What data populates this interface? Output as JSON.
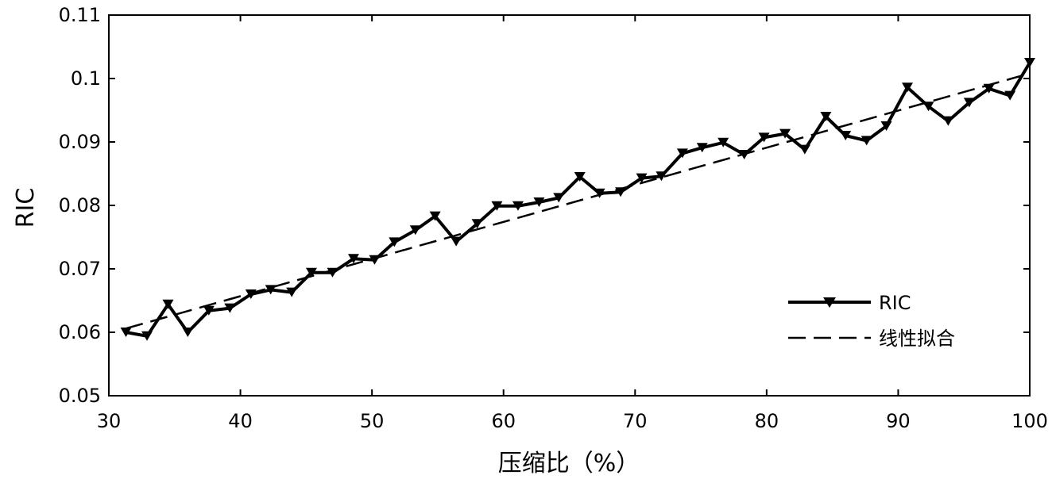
{
  "chart_data": {
    "type": "line",
    "xlabel": "压缩比（%）",
    "ylabel": "RIC",
    "xlim": [
      30,
      100
    ],
    "ylim": [
      0.05,
      0.11
    ],
    "xticks": [
      "30",
      "40",
      "50",
      "60",
      "70",
      "80",
      "90",
      "100"
    ],
    "yticks": [
      "0.05",
      "0.06",
      "0.07",
      "0.08",
      "0.09",
      "0.1",
      "0.11"
    ],
    "grid": false,
    "legend_position": "right",
    "series": [
      {
        "name": "RIC",
        "style": "solid-triangle-markers",
        "x": [
          31.3,
          32.9,
          34.5,
          36.0,
          37.6,
          39.2,
          40.8,
          42.3,
          43.9,
          45.4,
          47.0,
          48.6,
          50.2,
          51.7,
          53.3,
          54.8,
          56.4,
          58.0,
          59.5,
          61.1,
          62.7,
          64.2,
          65.8,
          67.3,
          68.9,
          70.5,
          72.0,
          73.6,
          75.1,
          76.7,
          78.3,
          79.8,
          81.4,
          82.9,
          84.5,
          86.0,
          87.6,
          89.1,
          90.7,
          92.3,
          93.8,
          95.4,
          96.9,
          98.5,
          100.0
        ],
        "y": [
          0.06,
          0.0594,
          0.0644,
          0.06,
          0.0634,
          0.0638,
          0.066,
          0.0667,
          0.0663,
          0.0694,
          0.0694,
          0.0716,
          0.0714,
          0.0742,
          0.0761,
          0.0783,
          0.0743,
          0.0771,
          0.0799,
          0.0799,
          0.0805,
          0.0812,
          0.0845,
          0.0819,
          0.0821,
          0.0843,
          0.0846,
          0.0882,
          0.0891,
          0.0899,
          0.088,
          0.0907,
          0.0913,
          0.0888,
          0.094,
          0.091,
          0.0902,
          0.0925,
          0.0986,
          0.0956,
          0.0933,
          0.0962,
          0.0984,
          0.0973,
          0.1025
        ]
      },
      {
        "name": "线性拟合",
        "style": "dashed",
        "x": [
          31.3,
          100.0
        ],
        "y": [
          0.0606,
          0.1008
        ]
      }
    ],
    "colors": {
      "line": "#000000",
      "background": "#ffffff"
    }
  }
}
